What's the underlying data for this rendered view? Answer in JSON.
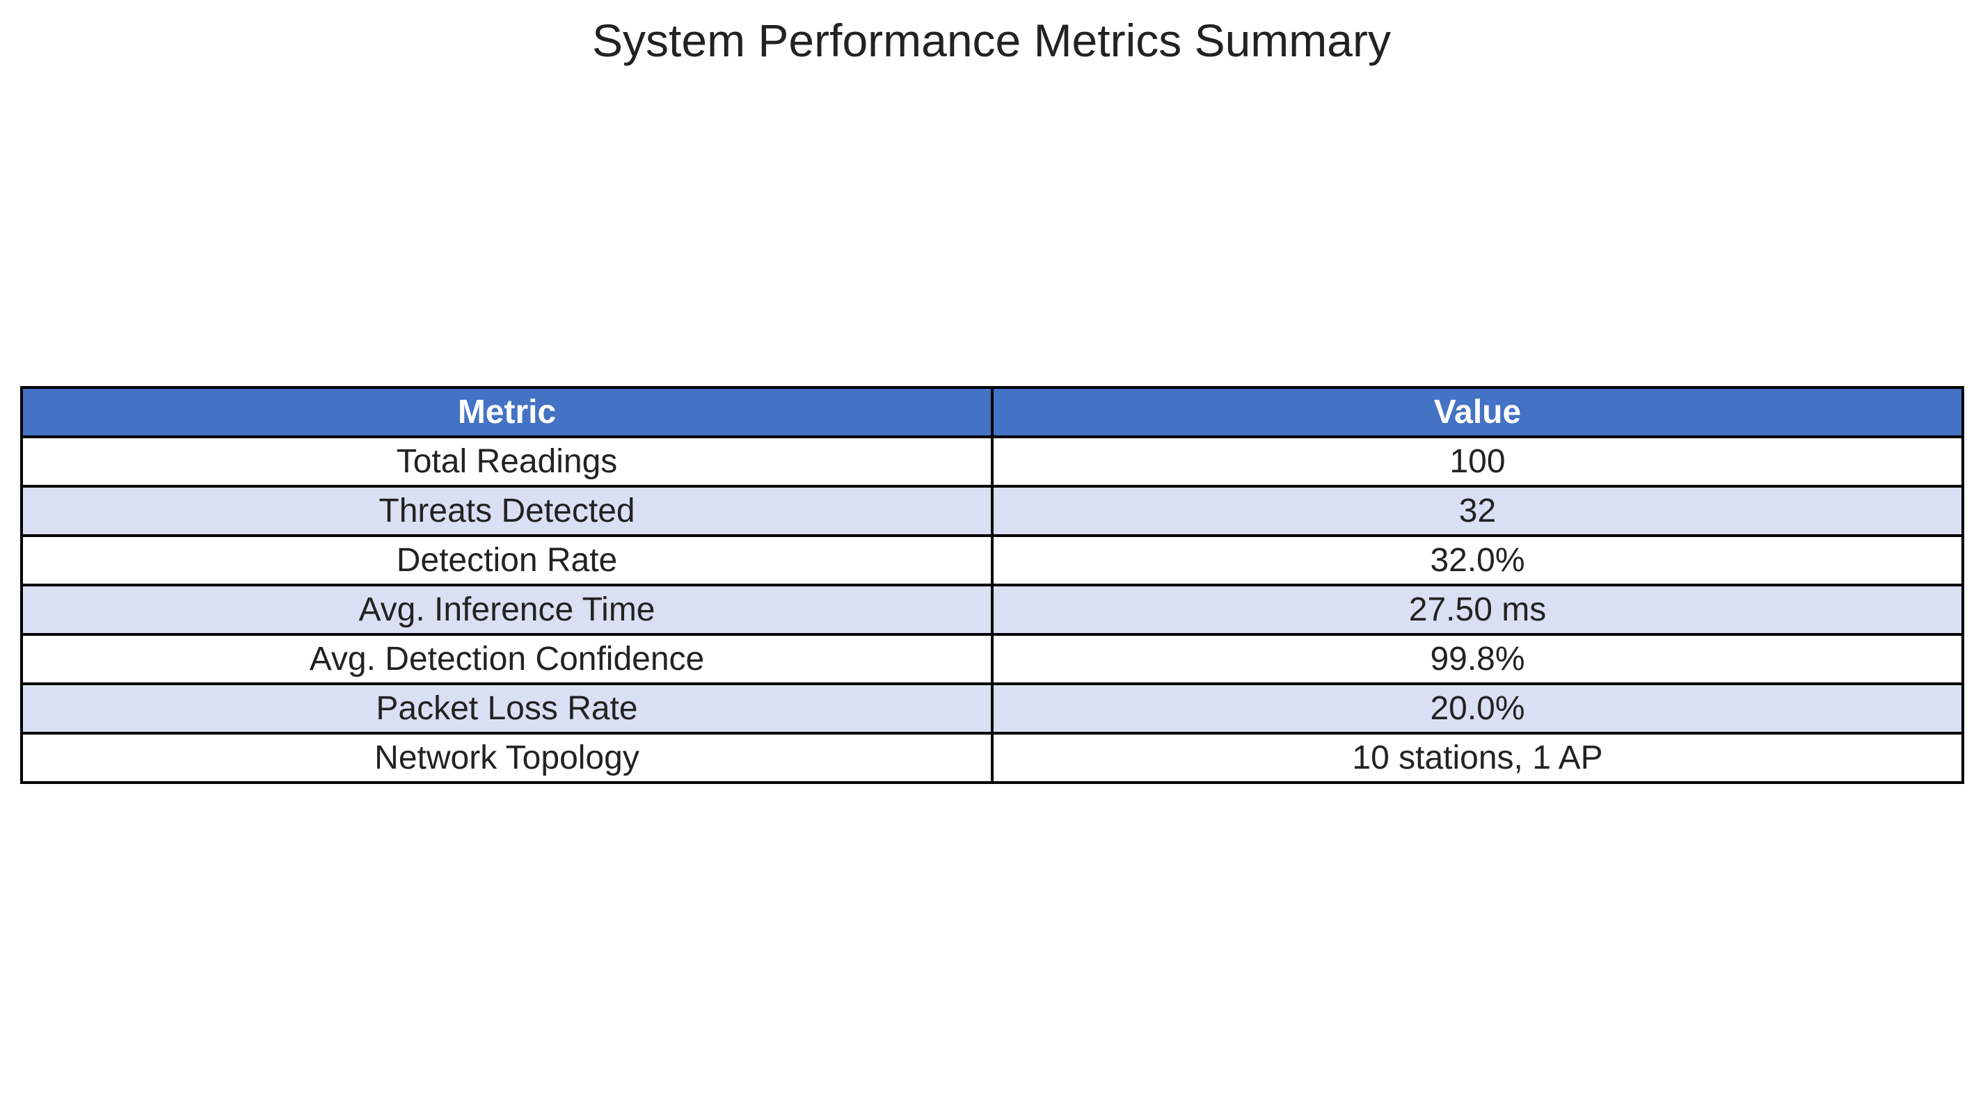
{
  "chart_data": {
    "type": "table",
    "title": "System Performance Metrics Summary",
    "columns": [
      "Metric",
      "Value"
    ],
    "rows": [
      [
        "Total Readings",
        "100"
      ],
      [
        "Threats Detected",
        "32"
      ],
      [
        "Detection Rate",
        "32.0%"
      ],
      [
        "Avg. Inference Time",
        "27.50 ms"
      ],
      [
        "Avg. Detection Confidence",
        "99.8%"
      ],
      [
        "Packet Loss Rate",
        "20.0%"
      ],
      [
        "Network Topology",
        "10 stations, 1 AP"
      ]
    ],
    "colors": {
      "header_bg": "#4472c4",
      "header_text": "#ffffff",
      "row_alt_bg": "#dae0f3",
      "row_bg": "#ffffff",
      "border": "#000000"
    }
  }
}
